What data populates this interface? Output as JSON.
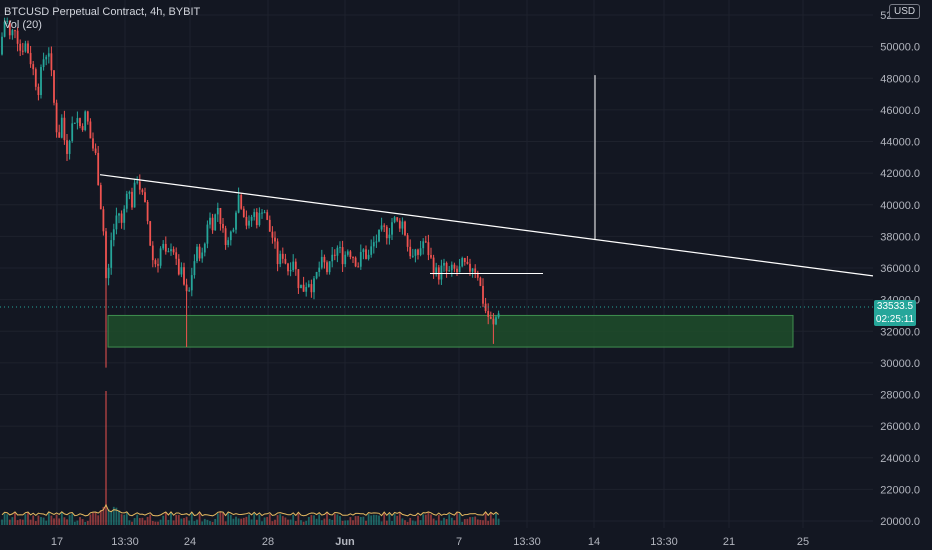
{
  "legend": {
    "symbol": "BTCUSD Perpetual Contract, 4h, BYBIT",
    "indicator": "Vol (20)"
  },
  "currency_button": "USD",
  "last_price": {
    "price": "33533.5",
    "countdown": "02:25:11"
  },
  "colors": {
    "background": "#131722",
    "up": "#26a69a",
    "down": "#ef5350",
    "zone_fill": "#1f4d2a",
    "zone_border": "#3f8f4f",
    "trendline": "#ffffff",
    "vol_ma": "#e5b960",
    "grid": "#1e222d",
    "axis_text": "#b2b5be"
  },
  "chart_data": {
    "type": "candlestick",
    "title": "BTCUSD Perpetual Contract, 4h, BYBIT",
    "timeframe": "4h",
    "price_axis_ticks": [
      "20000.0",
      "22000.0",
      "24000.0",
      "26000.0",
      "28000.0",
      "30000.0",
      "32000.0",
      "34000.0",
      "36000.0",
      "38000.0",
      "40000.0",
      "42000.0",
      "44000.0",
      "46000.0",
      "48000.0",
      "50000.0",
      "52000.0"
    ],
    "time_axis_ticks": [
      "17",
      "13:30",
      "24",
      "28",
      "Jun",
      "7",
      "13:30",
      "14",
      "13:30",
      "21",
      "25"
    ],
    "ylim": [
      19500,
      52500
    ],
    "last_price": 33533.5,
    "price_path": [
      {
        "x": 0,
        "p": 49500
      },
      {
        "x": 3,
        "p": 51200
      },
      {
        "x": 6,
        "p": 52000
      },
      {
        "x": 10,
        "p": 50500
      },
      {
        "x": 15,
        "p": 51300
      },
      {
        "x": 20,
        "p": 49800
      },
      {
        "x": 26,
        "p": 50200
      },
      {
        "x": 32,
        "p": 48800
      },
      {
        "x": 38,
        "p": 47200
      },
      {
        "x": 44,
        "p": 49400
      },
      {
        "x": 49,
        "p": 49800
      },
      {
        "x": 53,
        "p": 47000
      },
      {
        "x": 58,
        "p": 44000
      },
      {
        "x": 62,
        "p": 45500
      },
      {
        "x": 66,
        "p": 43200
      },
      {
        "x": 70,
        "p": 44600
      },
      {
        "x": 76,
        "p": 45700
      },
      {
        "x": 81,
        "p": 44800
      },
      {
        "x": 86,
        "p": 45800
      },
      {
        "x": 91,
        "p": 44000
      },
      {
        "x": 96,
        "p": 43000
      },
      {
        "x": 100,
        "p": 40500
      },
      {
        "x": 104,
        "p": 38000
      },
      {
        "x": 107,
        "p": 34000
      },
      {
        "x": 110,
        "p": 37500
      },
      {
        "x": 114,
        "p": 38500
      },
      {
        "x": 118,
        "p": 39800
      },
      {
        "x": 122,
        "p": 38600
      },
      {
        "x": 127,
        "p": 41200
      },
      {
        "x": 132,
        "p": 40100
      },
      {
        "x": 137,
        "p": 41800
      },
      {
        "x": 142,
        "p": 40600
      },
      {
        "x": 147,
        "p": 39300
      },
      {
        "x": 152,
        "p": 36600
      },
      {
        "x": 157,
        "p": 36200
      },
      {
        "x": 162,
        "p": 37600
      },
      {
        "x": 167,
        "p": 36400
      },
      {
        "x": 172,
        "p": 37800
      },
      {
        "x": 177,
        "p": 35900
      },
      {
        "x": 182,
        "p": 35600
      },
      {
        "x": 186,
        "p": 34200
      },
      {
        "x": 189,
        "p": 34400
      },
      {
        "x": 193,
        "p": 36200
      },
      {
        "x": 198,
        "p": 37200
      },
      {
        "x": 203,
        "p": 36600
      },
      {
        "x": 208,
        "p": 39300
      },
      {
        "x": 213,
        "p": 38800
      },
      {
        "x": 218,
        "p": 39900
      },
      {
        "x": 223,
        "p": 38200
      },
      {
        "x": 228,
        "p": 37600
      },
      {
        "x": 233,
        "p": 38700
      },
      {
        "x": 238,
        "p": 40700
      },
      {
        "x": 243,
        "p": 39800
      },
      {
        "x": 248,
        "p": 38400
      },
      {
        "x": 253,
        "p": 39600
      },
      {
        "x": 258,
        "p": 38900
      },
      {
        "x": 263,
        "p": 40100
      },
      {
        "x": 268,
        "p": 38600
      },
      {
        "x": 273,
        "p": 37900
      },
      {
        "x": 278,
        "p": 36300
      },
      {
        "x": 283,
        "p": 36900
      },
      {
        "x": 288,
        "p": 35900
      },
      {
        "x": 293,
        "p": 36700
      },
      {
        "x": 298,
        "p": 35100
      },
      {
        "x": 303,
        "p": 34600
      },
      {
        "x": 308,
        "p": 35300
      },
      {
        "x": 313,
        "p": 34700
      },
      {
        "x": 318,
        "p": 35900
      },
      {
        "x": 323,
        "p": 36400
      },
      {
        "x": 328,
        "p": 35700
      },
      {
        "x": 333,
        "p": 36700
      },
      {
        "x": 338,
        "p": 37300
      },
      {
        "x": 343,
        "p": 36600
      },
      {
        "x": 348,
        "p": 37200
      },
      {
        "x": 353,
        "p": 36800
      },
      {
        "x": 358,
        "p": 36200
      },
      {
        "x": 363,
        "p": 37100
      },
      {
        "x": 368,
        "p": 36600
      },
      {
        "x": 373,
        "p": 37500
      },
      {
        "x": 378,
        "p": 37900
      },
      {
        "x": 383,
        "p": 38400
      },
      {
        "x": 388,
        "p": 38200
      },
      {
        "x": 393,
        "p": 39100
      },
      {
        "x": 398,
        "p": 38800
      },
      {
        "x": 403,
        "p": 38900
      },
      {
        "x": 408,
        "p": 37300
      },
      {
        "x": 413,
        "p": 36600
      },
      {
        "x": 418,
        "p": 36900
      },
      {
        "x": 423,
        "p": 37700
      },
      {
        "x": 428,
        "p": 37100
      },
      {
        "x": 433,
        "p": 36100
      },
      {
        "x": 438,
        "p": 35500
      },
      {
        "x": 443,
        "p": 36100
      },
      {
        "x": 448,
        "p": 35600
      },
      {
        "x": 453,
        "p": 35900
      },
      {
        "x": 458,
        "p": 35700
      },
      {
        "x": 463,
        "p": 36300
      },
      {
        "x": 468,
        "p": 35800
      },
      {
        "x": 473,
        "p": 36200
      },
      {
        "x": 478,
        "p": 35600
      },
      {
        "x": 482,
        "p": 34200
      },
      {
        "x": 486,
        "p": 33200
      },
      {
        "x": 490,
        "p": 32700
      },
      {
        "x": 494,
        "p": 32200
      },
      {
        "x": 497,
        "p": 33200
      },
      {
        "x": 500,
        "p": 33534
      }
    ],
    "spike_lows": [
      {
        "x": 107,
        "p": 29700
      },
      {
        "x": 187,
        "p": 31000
      },
      {
        "x": 494,
        "p": 31200
      }
    ],
    "support_zone": {
      "x_start": "24 (approx)",
      "y_top": 33000,
      "y_bottom": 31000
    },
    "trendline": {
      "from": {
        "x": 100,
        "p": 41900
      },
      "to": {
        "x": 873,
        "p": 35500
      }
    },
    "horizontal_level": {
      "x_start": 430,
      "x_end": 543,
      "p": 35650
    },
    "measure_line": {
      "x": 595,
      "p_top": 48200,
      "p_bottom": 37800
    },
    "volume_spike": {
      "x": 107
    }
  }
}
